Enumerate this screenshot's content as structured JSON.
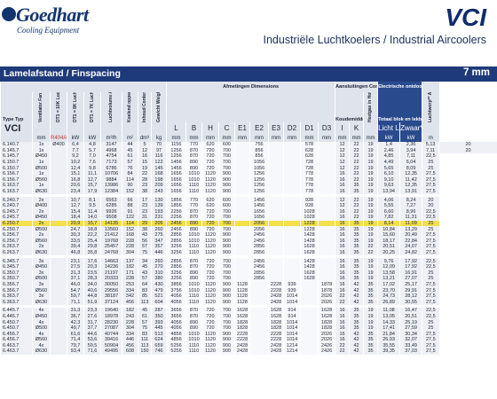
{
  "brand": {
    "name": "Goedhart",
    "tagline": "Cooling Equipment"
  },
  "header": {
    "model": "VCI",
    "subtitle": "Industriële Luchtkoelers / Industrial Aircoolers"
  },
  "spacing_bar": {
    "label": "Lamelafstand / Finspacing",
    "value": "7 mm"
  },
  "columns": {
    "type": "Type Typ",
    "fan": "Ventilator Fan",
    "cap1": "DT1 = 10K Lucht in / Air on 0°C",
    "cap2": "DT1 = 8K Lucht in / Air on -25°C",
    "cap3": "DT1 = 7K Lucht in / Air on -18°C",
    "airflow": "Luchtvolume Air volume",
    "surface": "Koelend oppervlak Cooling surface",
    "content": "Inhoud Content",
    "weight": "Gewicht Weight",
    "dims_group": "Afmetingen Dimensions",
    "conn_group": "Aansluitingen Connections",
    "conn_sub": "Koudemiddel Refrigerant",
    "hot_gas": "Heetgas in Hot gas in",
    "defrost_group": "Electrische ontdooiing Electric defrost",
    "defrost_sub": "Totaal blok en lekbak Total coil and drip",
    "throw": "Luchtworp** Air throw** m",
    "refrigerant": "R404A",
    "dims": [
      "L",
      "B",
      "H",
      "C",
      "E1",
      "E2 E",
      "E3",
      "D2",
      "D1",
      "D3"
    ],
    "conn": [
      "I",
      "K"
    ],
    "defrost": [
      "Licht Light",
      "Zwaar* Heavy*"
    ]
  },
  "unit_row": {
    "model": "VCI",
    "fan": "",
    "cap1": "",
    "cap2": "",
    "cap3": "",
    "airflow": "",
    "surface": "",
    "content": "",
    "weight": "",
    "dims": [
      "L",
      "B",
      "H",
      "C",
      "E1",
      "E2",
      "E3",
      "D2",
      "D1",
      "D3"
    ],
    "conn": [
      "I",
      "K"
    ],
    "hotgas": "",
    "defrost": [
      "Light",
      "Heavy*"
    ],
    "throw": ""
  },
  "units": {
    "type": "",
    "fan": "mm",
    "cap": "kW",
    "cap2": "kW",
    "cap3": "kW",
    "air": "m³/h",
    "surf": "m²",
    "cont": "dm³",
    "weight": "kg",
    "dims": "mm",
    "conn": "mm",
    "hot": "mm",
    "defrost": "kW",
    "throw": "m"
  },
  "table_rows": [
    {
      "c": [
        "6.140.7",
        "1x",
        "Ø400",
        "6,4",
        "4,8",
        "3147",
        "44",
        "5",
        "70",
        "1156",
        "770",
        "620",
        "600",
        "",
        "756",
        "",
        "",
        "578",
        "",
        "12",
        "22",
        "19",
        "1,4",
        "2,36",
        "5,13",
        "20"
      ]
    },
    {
      "c": [
        "6.145.7",
        "1x",
        "",
        "7,7",
        "5,7",
        "4968",
        "45",
        "12",
        "97",
        "1256",
        "870",
        "720",
        "700",
        "",
        "856",
        "",
        "",
        "628",
        "",
        "12",
        "22",
        "19",
        "2,46",
        "3,94",
        "7,11",
        "20"
      ]
    },
    {
      "c": [
        "6.145.7",
        "Ø450",
        "",
        "9,2",
        "7,0",
        "4754",
        "61",
        "16",
        "116",
        "1256",
        "870",
        "720",
        "700",
        "",
        "856",
        "",
        "",
        "628",
        "",
        "12",
        "22",
        "19",
        "4,85",
        "7,11",
        "22,5"
      ]
    },
    {
      "c": [
        "6.150.7",
        "1x",
        "",
        "10,2",
        "7,6",
        "7173",
        "57",
        "15",
        "122",
        "1456",
        "890",
        "720",
        "700",
        "",
        "1056",
        "",
        "",
        "728",
        "",
        "12",
        "22",
        "19",
        "4,49",
        "6,04",
        "25"
      ]
    },
    {
      "c": [
        "6.150.7",
        "Ø500",
        "",
        "12,4",
        "9,8",
        "6786",
        "76",
        "19",
        "145",
        "1456",
        "890",
        "720",
        "700",
        "",
        "1056",
        "",
        "",
        "728",
        "",
        "12",
        "22",
        "19",
        "5,65",
        "8,09",
        "25"
      ]
    },
    {
      "c": [
        "6.156.7",
        "1x",
        "",
        "15,1",
        "11,1",
        "10706",
        "84",
        "22",
        "168",
        "1656",
        "1010",
        "1120",
        "900",
        "",
        "1256",
        "",
        "",
        "778",
        "",
        "16",
        "22",
        "19",
        "6,10",
        "12,35",
        "27,5"
      ]
    },
    {
      "c": [
        "6.156.7",
        "Ø560",
        "",
        "16,8",
        "12,7",
        "9884",
        "114",
        "28",
        "198",
        "1656",
        "1010",
        "1120",
        "900",
        "",
        "1256",
        "",
        "",
        "778",
        "",
        "16",
        "22",
        "19",
        "9,10",
        "11,42",
        "27,5"
      ]
    },
    {
      "c": [
        "6.163.7",
        "1x",
        "",
        "20,6",
        "15,7",
        "13986",
        "90",
        "23",
        "209",
        "1656",
        "1110",
        "1120",
        "900",
        "",
        "1256",
        "",
        "",
        "778",
        "",
        "16",
        "35",
        "19",
        "9,63",
        "12,35",
        "27,5"
      ]
    },
    {
      "c": [
        "6.163.7",
        "Ø630",
        "",
        "23,4",
        "17,9",
        "12384",
        "152",
        "38",
        "243",
        "1656",
        "1110",
        "1120",
        "900",
        "",
        "1256",
        "",
        "",
        "778",
        "",
        "16",
        "35",
        "19",
        "13,94",
        "13,91",
        "27,5"
      ]
    },
    {
      "gap": true
    },
    {
      "c": [
        "6.240.7",
        "2x",
        "",
        "10,7",
        "8,1",
        "6563",
        "66",
        "17",
        "130",
        "1856",
        "770",
        "620",
        "600",
        "",
        "1456",
        "",
        "",
        "928",
        "",
        "12",
        "22",
        "19",
        "4,06",
        "8,24",
        "20"
      ]
    },
    {
      "c": [
        "6.240.7",
        "Ø400",
        "",
        "12,7",
        "9,5",
        "6285",
        "88",
        "23",
        "139",
        "1856",
        "770",
        "620",
        "600",
        "",
        "1456",
        "",
        "",
        "928",
        "",
        "12",
        "22",
        "19",
        "5,55",
        "7,27",
        "20"
      ]
    },
    {
      "c": [
        "6.245.7",
        "2x",
        "",
        "15,4",
        "11,4",
        "9926",
        "91",
        "23",
        "193",
        "2256",
        "870",
        "720",
        "700",
        "",
        "1656",
        "",
        "",
        "1028",
        "",
        "16",
        "22",
        "19",
        "6,60",
        "8,96",
        "22,5"
      ]
    },
    {
      "c": [
        "6.245.7",
        "Ø450",
        "",
        "18,4",
        "14,0",
        "9508",
        "122",
        "31",
        "231",
        "2256",
        "870",
        "720",
        "700",
        "",
        "1656",
        "",
        "",
        "1028",
        "",
        "16",
        "22",
        "19",
        "7,82",
        "11,31",
        "22,5"
      ]
    },
    {
      "c": [
        "6.250.7",
        "2x",
        "",
        "20,9",
        "15,7",
        "14135",
        "114",
        "29",
        "205",
        "2456",
        "890",
        "720",
        "700",
        "",
        "2056",
        "",
        "",
        "1228",
        "",
        "16",
        "35",
        "19",
        "8,14",
        "11,09",
        "25"
      ],
      "hl": true
    },
    {
      "c": [
        "6.250.7",
        "Ø500",
        "",
        "24,7",
        "18,8",
        "13560",
        "152",
        "38",
        "260",
        "2456",
        "890",
        "720",
        "700",
        "",
        "2056",
        "",
        "",
        "1228",
        "",
        "16",
        "35",
        "19",
        "10,84",
        "13,29",
        "25"
      ]
    },
    {
      "c": [
        "6.256.7",
        "2x",
        "",
        "30,3",
        "22,2",
        "21412",
        "168",
        "43",
        "275",
        "2856",
        "1010",
        "1120",
        "900",
        "",
        "2456",
        "",
        "",
        "1428",
        "",
        "16",
        "35",
        "19",
        "15,60",
        "20,49",
        "27,5"
      ]
    },
    {
      "c": [
        "6.256.7",
        "Ø560",
        "",
        "33,5",
        "25,4",
        "19768",
        "228",
        "56",
        "347",
        "2856",
        "1010",
        "1120",
        "900",
        "",
        "2456",
        "",
        "",
        "1428",
        "",
        "16",
        "35",
        "19",
        "18,17",
        "22,84",
        "27,5"
      ]
    },
    {
      "c": [
        "6.263.7",
        "2x",
        "",
        "39,4",
        "29,8",
        "25457",
        "228",
        "57",
        "357",
        "3256",
        "1110",
        "1120",
        "900",
        "",
        "2856",
        "",
        "",
        "1628",
        "",
        "16",
        "35",
        "22",
        "20,51",
        "24,07",
        "27,5"
      ]
    },
    {
      "c": [
        "6.263.7",
        "Ø630",
        "",
        "46,8",
        "35,8",
        "24768",
        "304",
        "75",
        "446",
        "3256",
        "1110",
        "1120",
        "900",
        "",
        "2856",
        "",
        "",
        "1628",
        "",
        "16",
        "35",
        "22",
        "20,25",
        "24,82",
        "27,5"
      ]
    },
    {
      "gap": true
    },
    {
      "c": [
        "6.345.7",
        "3x",
        "",
        "23,1",
        "17,6",
        "14663",
        "137",
        "34",
        "260",
        "2856",
        "870",
        "720",
        "700",
        "",
        "2456",
        "",
        "",
        "1428",
        "",
        "16",
        "35",
        "19",
        "9,76",
        "17,92",
        "22,5"
      ]
    },
    {
      "c": [
        "6.345.7",
        "Ø450",
        "",
        "27,5",
        "20,3",
        "14236",
        "182",
        "45",
        "270",
        "2856",
        "870",
        "720",
        "700",
        "",
        "2456",
        "",
        "",
        "1428",
        "",
        "16",
        "35",
        "19",
        "12,09",
        "17,92",
        "22,5"
      ]
    },
    {
      "c": [
        "6.350.7",
        "3x",
        "",
        "31,3",
        "23,5",
        "21197",
        "171",
        "43",
        "310",
        "3256",
        "890",
        "720",
        "700",
        "",
        "2856",
        "",
        "",
        "1628",
        "",
        "16",
        "35",
        "19",
        "13,58",
        "16,91",
        "25"
      ]
    },
    {
      "c": [
        "6.350.7",
        "Ø500",
        "",
        "37,1",
        "28,3",
        "20333",
        "228",
        "57",
        "380",
        "3256",
        "890",
        "720",
        "700",
        "",
        "2856",
        "",
        "",
        "1628",
        "",
        "16",
        "35",
        "19",
        "13,21",
        "27,07",
        "25"
      ]
    },
    {
      "c": [
        "6.356.7",
        "3x",
        "",
        "46,0",
        "34,0",
        "30050",
        "253",
        "64",
        "430",
        "3856",
        "1010",
        "1120",
        "900",
        "1128",
        "",
        "2228",
        "939",
        "",
        "1878",
        "16",
        "42",
        "35",
        "17,02",
        "25,17",
        "27,5"
      ]
    },
    {
      "c": [
        "6.356.7",
        "Ø560",
        "",
        "54,7",
        "40,6",
        "29556",
        "334",
        "83",
        "479",
        "3756",
        "1010",
        "1120",
        "900",
        "1128",
        "",
        "2228",
        "939",
        "",
        "1878",
        "16",
        "42",
        "35",
        "23,70",
        "29,91",
        "27,5"
      ]
    },
    {
      "c": [
        "6.363.7",
        "3x",
        "",
        "59,7",
        "44,8",
        "38187",
        "342",
        "85",
        "521",
        "4056",
        "1110",
        "1120",
        "900",
        "1128",
        "",
        "2428",
        "1014",
        "",
        "2026",
        "22",
        "42",
        "35",
        "24,73",
        "28,12",
        "27,5"
      ]
    },
    {
      "c": [
        "6.363.7",
        "Ø630",
        "",
        "71,1",
        "51,9",
        "37124",
        "456",
        "113",
        "604",
        "4056",
        "1110",
        "1120",
        "900",
        "1128",
        "",
        "2428",
        "1014",
        "",
        "2026",
        "22",
        "42",
        "35",
        "26,89",
        "30,55",
        "27,5"
      ]
    },
    {
      "gap": true
    },
    {
      "c": [
        "6.445.7",
        "4x",
        "",
        "31,3",
        "23,3",
        "19640",
        "182",
        "45",
        "287",
        "3656",
        "870",
        "720",
        "700",
        "1628",
        "",
        "1628",
        "914",
        "",
        "1628",
        "16",
        "35",
        "19",
        "11,08",
        "16,47",
        "22,5"
      ]
    },
    {
      "c": [
        "6.445.7",
        "Ø450",
        "",
        "36,7",
        "27,6",
        "18978",
        "243",
        "61",
        "350",
        "3656",
        "870",
        "720",
        "700",
        "1628",
        "",
        "1628",
        "914",
        "",
        "1628",
        "16",
        "35",
        "19",
        "13,05",
        "20,51",
        "22,5"
      ]
    },
    {
      "c": [
        "6.450.7",
        "4x",
        "",
        "42,3",
        "31,7",
        "28230",
        "228",
        "57",
        "393",
        "4056",
        "890",
        "720",
        "700",
        "1828",
        "",
        "1828",
        "1014",
        "",
        "1828",
        "16",
        "35",
        "19",
        "14,33",
        "25,19",
        "25"
      ]
    },
    {
      "c": [
        "6.450.7",
        "Ø500",
        "",
        "49,7",
        "37,7",
        "27087",
        "304",
        "75",
        "445",
        "4056",
        "890",
        "720",
        "700",
        "1828",
        "",
        "1828",
        "1014",
        "",
        "1828",
        "16",
        "35",
        "19",
        "17,41",
        "27,59",
        "25"
      ]
    },
    {
      "c": [
        "6.456.7",
        "4x",
        "",
        "61,6",
        "44,6",
        "40744",
        "334",
        "83",
        "513",
        "4856",
        "1010",
        "1120",
        "900",
        "2228",
        "",
        "2228",
        "1014",
        "",
        "2026",
        "16",
        "42",
        "35",
        "21,84",
        "30,34",
        "27,5"
      ]
    },
    {
      "c": [
        "6.456.7",
        "Ø560",
        "",
        "71,4",
        "53,6",
        "39416",
        "446",
        "111",
        "624",
        "4856",
        "1010",
        "1120",
        "900",
        "2228",
        "",
        "2228",
        "1014",
        "",
        "2026",
        "16",
        "42",
        "35",
        "26,93",
        "32,07",
        "27,5"
      ]
    },
    {
      "c": [
        "6.463.7",
        "4x",
        "",
        "79,7",
        "59,5",
        "50904",
        "456",
        "113",
        "659",
        "5256",
        "1110",
        "1120",
        "900",
        "2428",
        "",
        "2428",
        "1214",
        "",
        "2426",
        "22",
        "42",
        "35",
        "35,55",
        "33,49",
        "27,5"
      ]
    },
    {
      "c": [
        "6.463.7",
        "Ø630",
        "",
        "93,4",
        "71,6",
        "49495",
        "608",
        "150",
        "746",
        "5256",
        "1110",
        "1120",
        "900",
        "2428",
        "",
        "2428",
        "1214",
        "",
        "2426",
        "22",
        "42",
        "35",
        "39,35",
        "37,03",
        "27,5"
      ]
    }
  ]
}
